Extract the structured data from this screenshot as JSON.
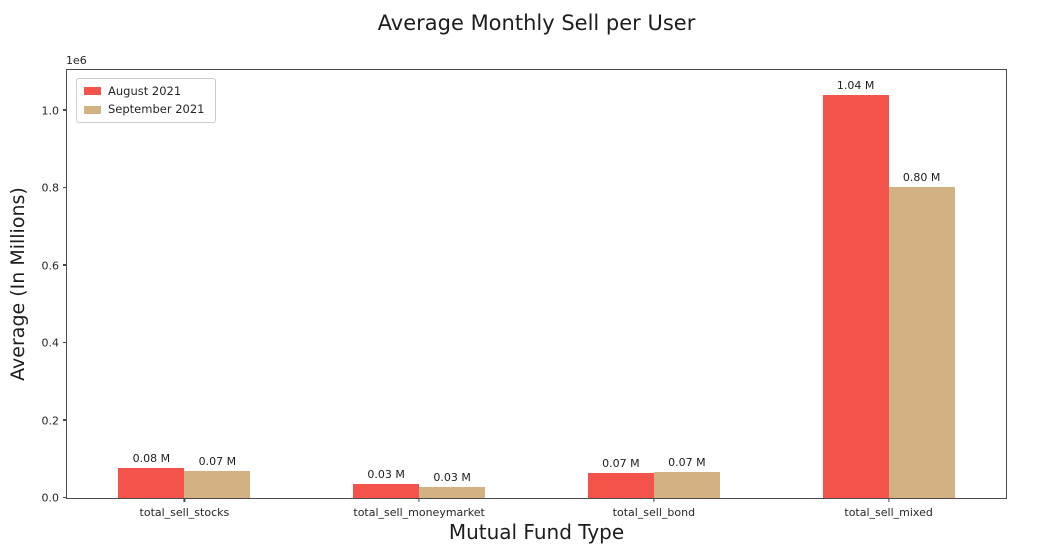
{
  "figure": {
    "background": "#ffffff",
    "frame_color": "#4a4a4a",
    "text_color": "#1d1d1d"
  },
  "chart_data": {
    "type": "bar",
    "title": "Average Monthly Sell per User",
    "xlabel": "Mutual Fund Type",
    "ylabel": "Average (In Millions)",
    "y_scale_offset_label": "1e6",
    "categories": [
      "total_sell_stocks",
      "total_sell_moneymarket",
      "total_sell_bond",
      "total_sell_mixed"
    ],
    "series": [
      {
        "name": "August 2021",
        "color": "#F4534B",
        "values": [
          78000,
          35000,
          65000,
          1041000
        ],
        "bar_labels": [
          "0.08 M",
          "0.03 M",
          "0.07 M",
          "1.04 M"
        ]
      },
      {
        "name": "September 2021",
        "color": "#D2B183",
        "values": [
          71000,
          29000,
          68000,
          803000
        ],
        "bar_labels": [
          "0.07 M",
          "0.03 M",
          "0.07 M",
          "0.80 M"
        ]
      }
    ],
    "y_tick_labels": [
      "0.0",
      "0.2",
      "0.4",
      "0.6",
      "0.8",
      "1.0"
    ],
    "y_tick_values": [
      0,
      200000,
      400000,
      600000,
      800000,
      1000000
    ],
    "ylim": [
      0,
      1105000
    ],
    "legend_position": "upper left",
    "grid": false
  }
}
